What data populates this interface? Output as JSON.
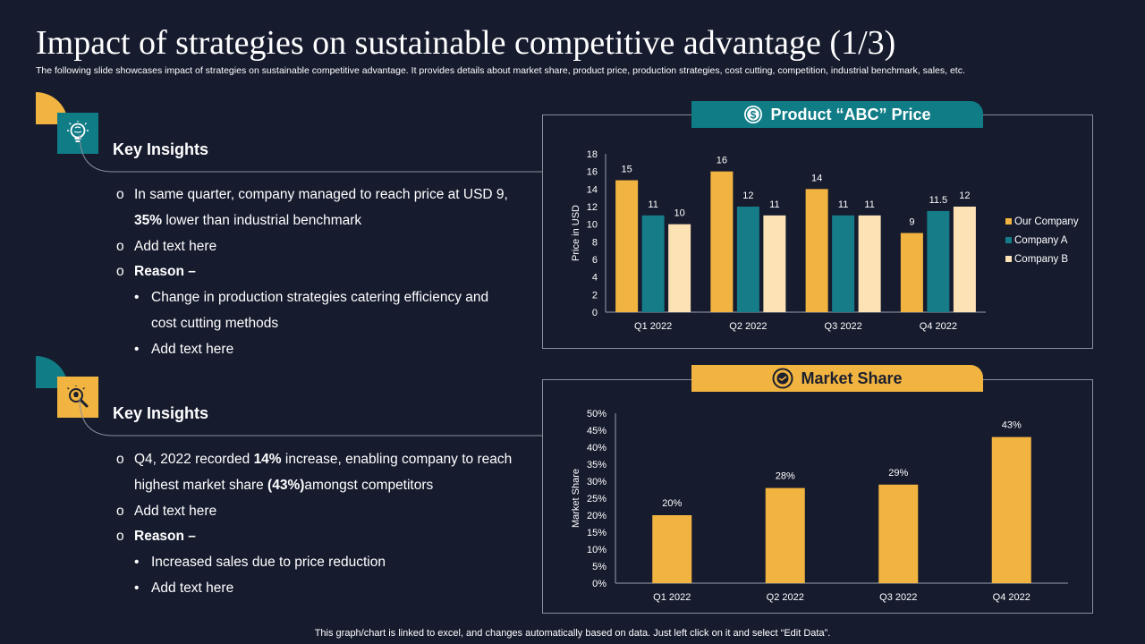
{
  "header": {
    "title": "Impact of strategies on sustainable competitive advantage (1/3)",
    "subtitle": "The following slide showcases impact of strategies on sustainable competitive advantage. It provides details about market share, product price, production strategies, cost cutting, competition, industrial benchmark, sales, etc."
  },
  "section1": {
    "heading": "Key Insights",
    "icon": "brain-lightbulb-icon",
    "b1_pre": "In same quarter, company managed to reach price at USD 9,",
    "b1_bold": "35%",
    "b1_post": " lower than industrial benchmark",
    "b2": "Add text here",
    "reason": "Reason –",
    "s1_line1": "Change in production strategies catering efficiency and",
    "s1_line2": "cost cutting methods",
    "s2": "Add text here"
  },
  "section2": {
    "heading": "Key Insights",
    "icon": "magnifier-lightbulb-icon",
    "b1_a": "Q4, 2022 recorded ",
    "b1_bold1": "14%",
    "b1_b": " increase, enabling company to reach",
    "b1_c": "highest market share ",
    "b1_bold2": "(43%)",
    "b1_d": "amongst competitors",
    "b2": "Add text here",
    "reason": "Reason –",
    "s1": "Increased sales due to price reduction",
    "s2": "Add text here"
  },
  "panel_price": {
    "label": "Product “ABC” Price",
    "icon": "dollar-coin-icon"
  },
  "panel_share": {
    "label": "Market Share",
    "icon": "handshake-badge-icon"
  },
  "footer": "This graph/chart is linked to excel,  and changes automatically based on data. Just left click on it and select “Edit Data”.",
  "colors": {
    "yellow": "#f2b440",
    "teal": "#157c88",
    "cream": "#fde2b5",
    "bg": "#161b2e"
  },
  "chart_data": [
    {
      "type": "bar",
      "title": "Product “ABC” Price",
      "categories": [
        "Q1 2022",
        "Q2 2022",
        "Q3 2022",
        "Q4 2022"
      ],
      "series": [
        {
          "name": "Our Company",
          "values": [
            15,
            16,
            14,
            9
          ],
          "labels": [
            "15",
            "16",
            "14",
            "9"
          ]
        },
        {
          "name": "Company A",
          "values": [
            11,
            12,
            11,
            11.5
          ],
          "labels": [
            "11",
            "12",
            "11",
            "11.5"
          ]
        },
        {
          "name": "Company B",
          "values": [
            10,
            11,
            11,
            12
          ],
          "labels": [
            "10",
            "11",
            "11",
            "12"
          ]
        }
      ],
      "xlabel": "",
      "ylabel": "Price in USD",
      "ylim": [
        0,
        18
      ],
      "yticks": [
        0,
        2,
        4,
        6,
        8,
        10,
        12,
        14,
        16,
        18
      ],
      "ytick_labels": [
        "0",
        "2",
        "4",
        "6",
        "8",
        "10",
        "12",
        "14",
        "16",
        "18"
      ],
      "legend": "right"
    },
    {
      "type": "bar",
      "title": "Market Share",
      "categories": [
        "Q1 2022",
        "Q2 2022",
        "Q3 2022",
        "Q4 2022"
      ],
      "values": [
        20,
        28,
        29,
        43
      ],
      "labels": [
        "20%",
        "28%",
        "29%",
        "43%"
      ],
      "xlabel": "",
      "ylabel": "Market Share",
      "ylim": [
        0,
        50
      ],
      "yticks": [
        0,
        5,
        10,
        15,
        20,
        25,
        30,
        35,
        40,
        45,
        50
      ],
      "ytick_labels": [
        "0%",
        "5%",
        "10%",
        "15%",
        "20%",
        "25%",
        "30%",
        "35%",
        "40%",
        "45%",
        "50%"
      ]
    }
  ]
}
